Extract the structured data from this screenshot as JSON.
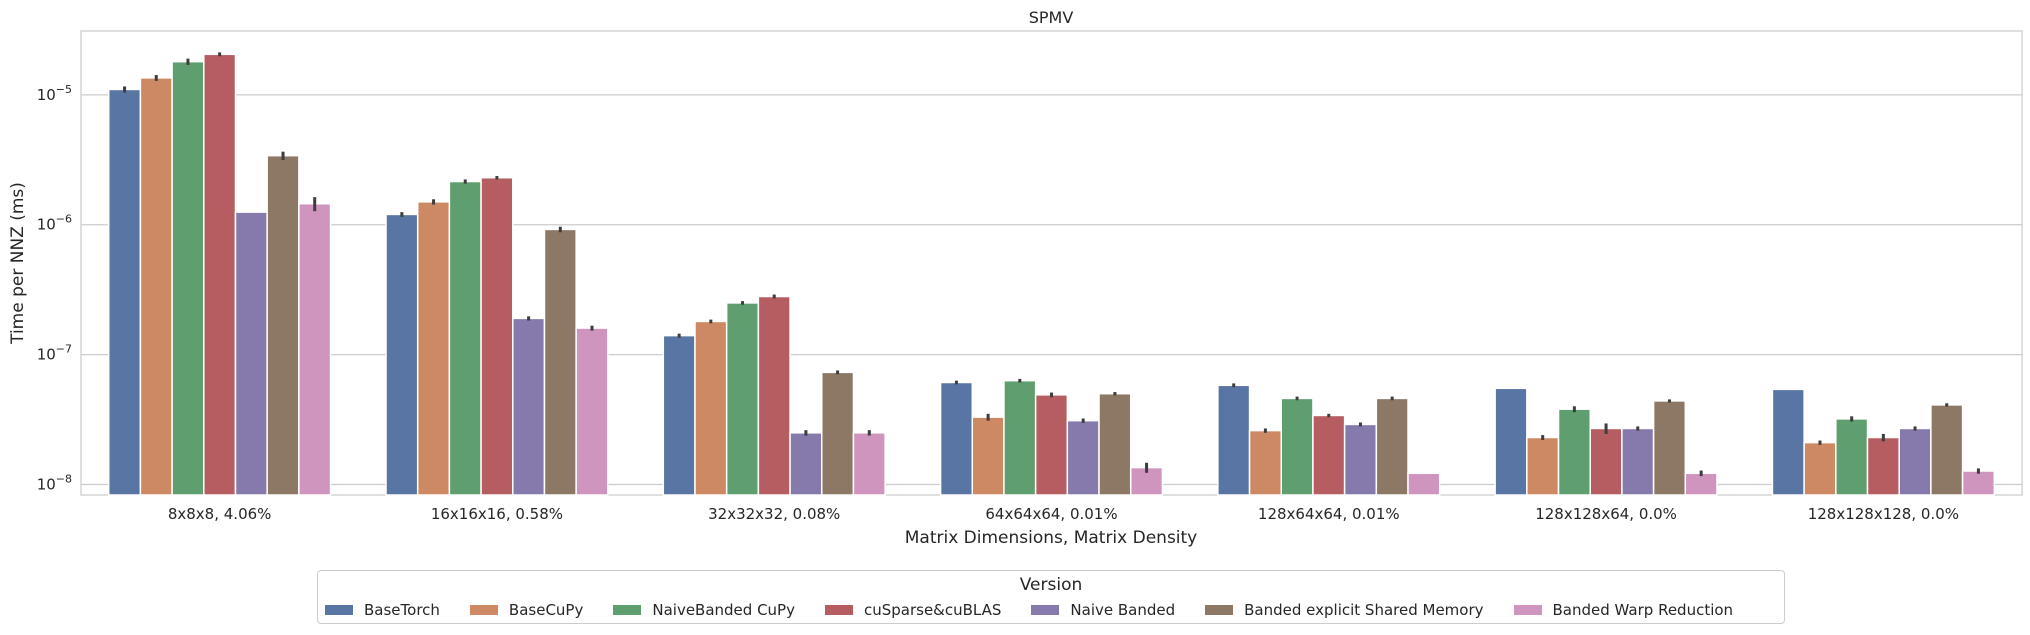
{
  "chart_data": {
    "type": "bar",
    "title": "SPMV",
    "xlabel": "Matrix Dimensions, Matrix Density",
    "ylabel": "Time per NNZ (ms)",
    "yscale": "log",
    "ylim": [
      8.3e-09,
      3.1e-05
    ],
    "yticks": [
      {
        "value": 1e-05,
        "base": "10",
        "exp": "−5"
      },
      {
        "value": 1e-06,
        "base": "10",
        "exp": "−6"
      },
      {
        "value": 1e-07,
        "base": "10",
        "exp": "−7"
      },
      {
        "value": 1e-08,
        "base": "10",
        "exp": "−8"
      }
    ],
    "grid": "horizontal",
    "legend_placement": "bottom-center",
    "categories": [
      "8x8x8, 4.06%",
      "16x16x16, 0.58%",
      "32x32x32, 0.08%",
      "64x64x64, 0.01%",
      "128x64x64, 0.01%",
      "128x128x64, 0.0%",
      "128x128x128, 0.0%"
    ],
    "series": [
      {
        "name": "BaseTorch",
        "color": "#5875a4",
        "values": [
          1.1e-05,
          1.2e-06,
          1.4e-07,
          6.1e-08,
          5.8e-08,
          5.5e-08,
          5.4e-08
        ],
        "errors": [
          6e-07,
          5e-08,
          5e-09,
          2e-09,
          2e-09,
          0,
          0
        ]
      },
      {
        "name": "BaseCuPy",
        "color": "#cc8963",
        "values": [
          1.35e-05,
          1.5e-06,
          1.8e-07,
          3.3e-08,
          2.6e-08,
          2.3e-08,
          2.1e-08
        ],
        "errors": [
          7e-07,
          7e-08,
          6e-09,
          2e-09,
          1e-09,
          1e-09,
          8e-10
        ]
      },
      {
        "name": "NaiveBanded CuPy",
        "color": "#5f9e6e",
        "values": [
          1.8e-05,
          2.15e-06,
          2.5e-07,
          6.3e-08,
          4.6e-08,
          3.8e-08,
          3.2e-08
        ],
        "errors": [
          1e-06,
          8e-08,
          8e-09,
          2e-09,
          1.5e-09,
          2e-09,
          1.5e-09
        ]
      },
      {
        "name": "cuSparse&cuBLAS",
        "color": "#b55d60",
        "values": [
          2.05e-05,
          2.3e-06,
          2.8e-07,
          4.9e-08,
          3.4e-08,
          2.7e-08,
          2.3e-08
        ],
        "errors": [
          7e-07,
          7e-08,
          1e-08,
          2e-09,
          1e-09,
          2.5e-09,
          1.5e-09
        ]
      },
      {
        "name": "Naive Banded",
        "color": "#857aab",
        "values": [
          1.25e-06,
          1.9e-07,
          2.5e-08,
          3.1e-08,
          2.9e-08,
          2.7e-08,
          2.7e-08
        ],
        "errors": [
          0,
          7e-09,
          1.2e-09,
          1.2e-09,
          1e-09,
          1e-09,
          1e-09
        ]
      },
      {
        "name": "Banded explicit Shared Memory",
        "color": "#8d7866",
        "values": [
          3.4e-06,
          9.2e-07,
          7.3e-08,
          5e-08,
          4.6e-08,
          4.4e-08,
          4.1e-08
        ],
        "errors": [
          2.5e-07,
          4.5e-08,
          2.5e-09,
          1.5e-09,
          1.5e-09,
          1.2e-09,
          1.2e-09
        ]
      },
      {
        "name": "Banded Warp Reduction",
        "color": "#d095bf",
        "values": [
          1.45e-06,
          1.6e-07,
          2.5e-08,
          1.35e-08,
          1.22e-08,
          1.22e-08,
          1.27e-08
        ],
        "errors": [
          1.8e-07,
          7e-09,
          1.2e-09,
          1.2e-09,
          0,
          6e-10,
          6e-10
        ]
      }
    ]
  },
  "legend": {
    "title": "Version"
  }
}
